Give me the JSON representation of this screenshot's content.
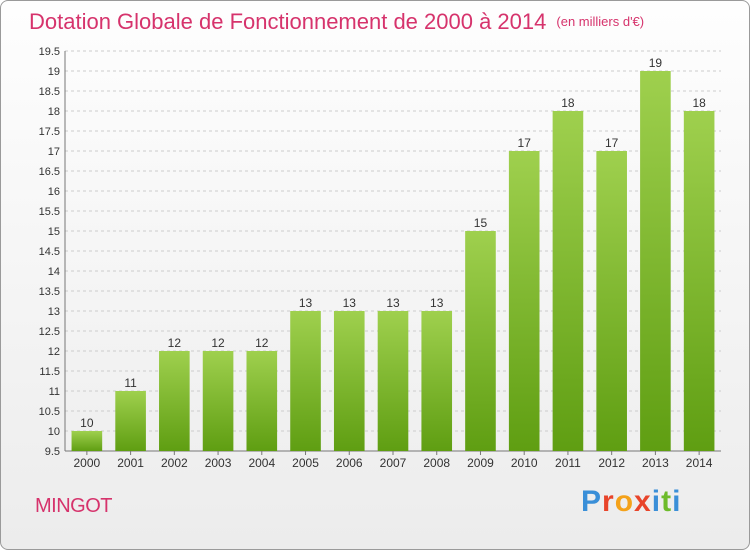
{
  "header": {
    "title": "Dotation Globale de Fonctionnement de 2000 à 2014",
    "subtitle": "(en milliers d'€)"
  },
  "footer": {
    "commune": "MINGOT",
    "brand": "Proxiti",
    "brand_colors": [
      "#3a8fd8",
      "#e8442a",
      "#f4a21a",
      "#e8442a",
      "#3a8fd8",
      "#6dbb2a",
      "#3a8fd8"
    ]
  },
  "colors": {
    "bar_top": "#9fd04e",
    "bar_bottom": "#5f9e12",
    "title": "#d6336c",
    "axis_text": "#333333",
    "grid": "#cccccc"
  },
  "chart_data": {
    "type": "bar",
    "categories": [
      "2000",
      "2001",
      "2002",
      "2003",
      "2004",
      "2005",
      "2006",
      "2007",
      "2008",
      "2009",
      "2010",
      "2011",
      "2012",
      "2013",
      "2014"
    ],
    "values": [
      10,
      11,
      12,
      12,
      12,
      13,
      13,
      13,
      13,
      15,
      17,
      18,
      17,
      19,
      18
    ],
    "labels": [
      "10",
      "11",
      "12",
      "12",
      "12",
      "13",
      "13",
      "13",
      "13",
      "15",
      "17",
      "18",
      "17",
      "19",
      "18"
    ],
    "yticks": [
      "9.5",
      "10",
      "10.5",
      "11",
      "11.5",
      "12",
      "12.5",
      "13",
      "13.5",
      "14",
      "14.5",
      "15",
      "15.5",
      "16",
      "16.5",
      "17",
      "17.5",
      "18",
      "18.5",
      "19",
      "19.5"
    ],
    "ylim": [
      9.5,
      19.5
    ],
    "grid": "horizontal dashed",
    "legend": "none"
  }
}
